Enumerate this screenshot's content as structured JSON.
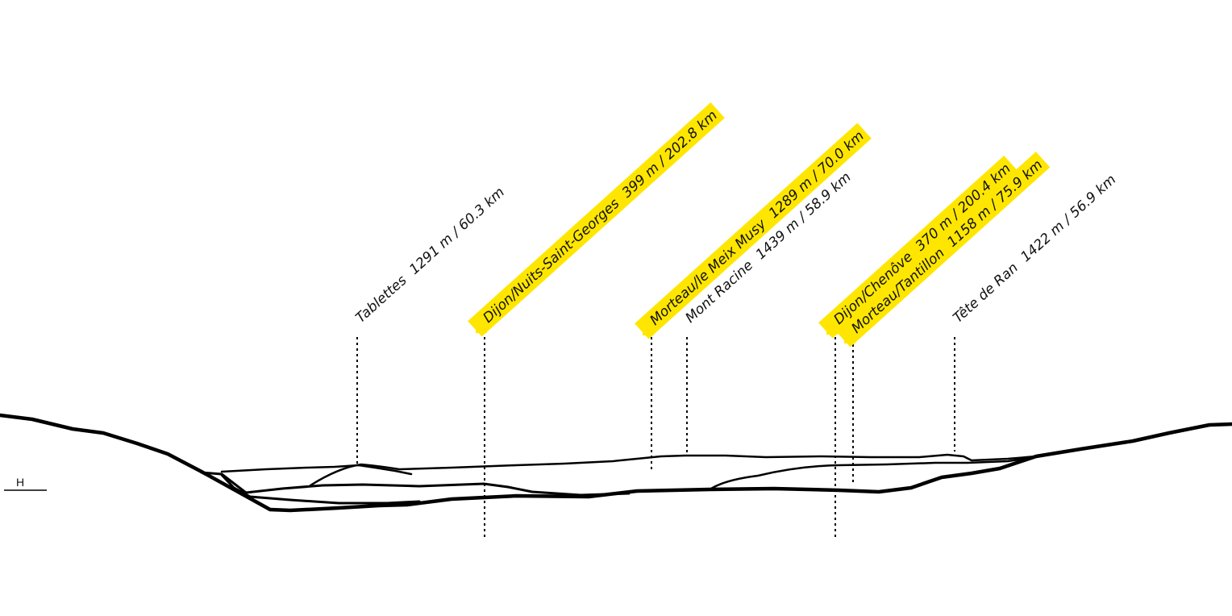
{
  "legend": {
    "h_label": "H"
  },
  "colors": {
    "highlight": "#ffe600",
    "ink": "#000000"
  },
  "labels": [
    {
      "name": "Tablettes",
      "alt": "1291 m",
      "dist": "60.3 km",
      "highlighted": false
    },
    {
      "name": "Dijon/Nuits-Saint-Georges",
      "alt": "399 m",
      "dist": "202.8 km",
      "highlighted": true
    },
    {
      "name": "Morteau/le Meix Musy",
      "alt": "1289 m",
      "dist": "70.0 km",
      "highlighted": true
    },
    {
      "name": "Mont Racine",
      "alt": "1439 m",
      "dist": "58.9 km",
      "highlighted": false
    },
    {
      "name": "Dijon/Chenôve",
      "alt": "370 m",
      "dist": "200.4 km",
      "highlighted": true
    },
    {
      "name": "Morteau/Tantillon",
      "alt": "1158 m",
      "dist": "75.9 km",
      "highlighted": true
    },
    {
      "name": "Tête de Ran",
      "alt": "1422 m",
      "dist": "56.9 km",
      "highlighted": false
    }
  ]
}
